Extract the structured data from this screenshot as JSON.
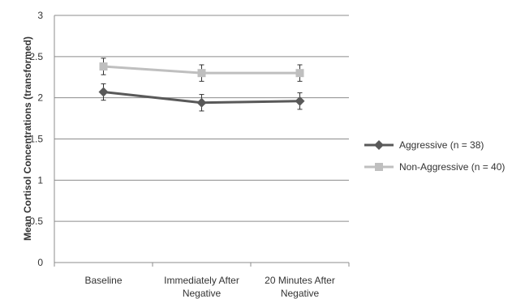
{
  "chart_data": {
    "type": "line",
    "title": "",
    "xlabel": "",
    "ylabel": "Mean Cortisol Concentrations (transformed)",
    "ylim": [
      0,
      3
    ],
    "yticks": [
      "0",
      "0.5",
      "1",
      "1.5",
      "2",
      "2.5",
      "3"
    ],
    "grid": true,
    "legend_position": "right",
    "categories": [
      [
        "Baseline"
      ],
      [
        "Immediately After",
        "Negative"
      ],
      [
        "20 Minutes After",
        "Negative"
      ]
    ],
    "series": [
      {
        "name": "Aggressive (n = 38)",
        "marker": "diamond",
        "color": "#595959",
        "values": [
          2.07,
          1.94,
          1.96
        ],
        "error": [
          0.1,
          0.1,
          0.1
        ]
      },
      {
        "name": "Non-Aggressive (n = 40)",
        "marker": "square",
        "color": "#bfbfbf",
        "values": [
          2.38,
          2.3,
          2.3
        ],
        "error": [
          0.1,
          0.1,
          0.1
        ]
      }
    ]
  }
}
